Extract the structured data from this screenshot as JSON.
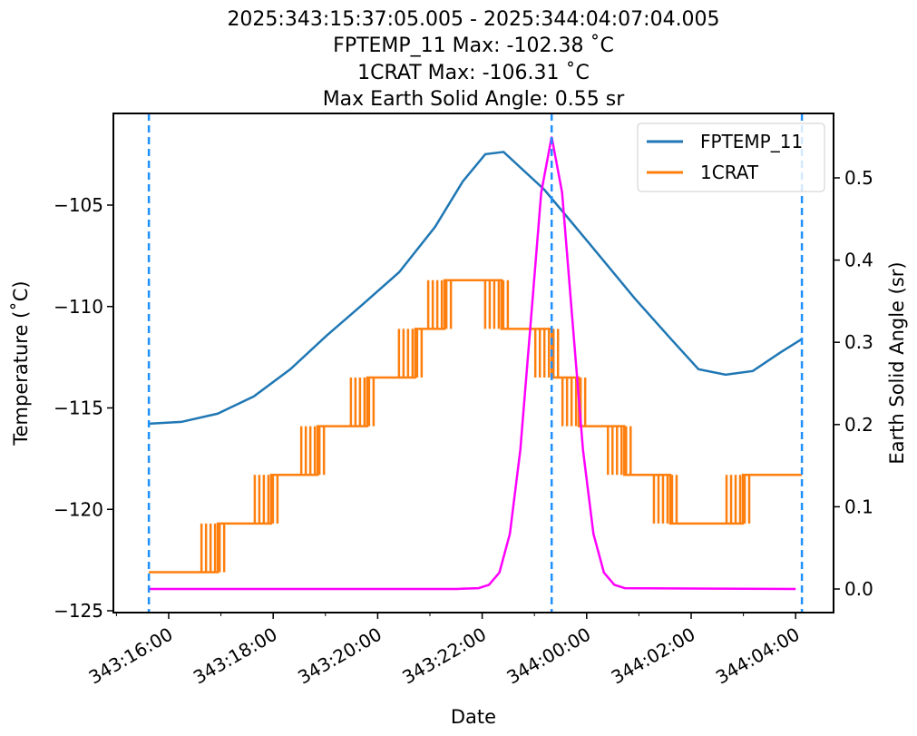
{
  "chart_data": {
    "type": "line",
    "title_lines": [
      "2025:343:15:37:05.005 - 2025:344:04:07:04.005",
      "FPTEMP_11 Max: -102.38 ˚C",
      "1CRAT Max: -106.31 ˚C",
      "Max Earth Solid Angle: 0.55 sr"
    ],
    "xlabel": "Date",
    "ylabel_left": "Temperature (˚C)",
    "ylabel_right": "Earth Solid Angle (sr)",
    "x_units": "hours since 343:16:00",
    "xlim": [
      -0.53,
      13.27
    ],
    "ylim_left": [
      -125.2,
      -100.6
    ],
    "ylim_right": [
      -0.03,
      0.58
    ],
    "x_ticks": [
      {
        "value": 0,
        "label": "343:16:00"
      },
      {
        "value": 2,
        "label": "343:18:00"
      },
      {
        "value": 4,
        "label": "343:20:00"
      },
      {
        "value": 6,
        "label": "343:22:00"
      },
      {
        "value": 8,
        "label": "344:00:00"
      },
      {
        "value": 10,
        "label": "344:02:00"
      },
      {
        "value": 12,
        "label": "344:04:00"
      }
    ],
    "y_ticks_left": [
      {
        "value": -105,
        "label": "−105"
      },
      {
        "value": -110,
        "label": "−110"
      },
      {
        "value": -115,
        "label": "−115"
      },
      {
        "value": -120,
        "label": "−120"
      },
      {
        "value": -125,
        "label": "−125"
      }
    ],
    "y_ticks_right": [
      {
        "value": 0.0,
        "label": "0.0"
      },
      {
        "value": 0.1,
        "label": "0.1"
      },
      {
        "value": 0.2,
        "label": "0.2"
      },
      {
        "value": 0.3,
        "label": "0.3"
      },
      {
        "value": 0.4,
        "label": "0.4"
      },
      {
        "value": 0.5,
        "label": "0.5"
      }
    ],
    "vlines": [
      -0.38,
      7.33,
      12.12
    ],
    "vline_color": "#1e90ff",
    "legend": {
      "position": "top-right",
      "entries": [
        "FPTEMP_11",
        "1CRAT"
      ]
    },
    "series": [
      {
        "name": "FPTEMP_11",
        "axis": "left",
        "color": "#1f77b4",
        "x": [
          -0.38,
          0.24,
          0.94,
          1.63,
          2.33,
          3.02,
          3.72,
          4.41,
          5.1,
          5.63,
          6.06,
          6.41,
          7.19,
          8.06,
          8.92,
          9.62,
          10.14,
          10.66,
          11.18,
          11.7,
          12.12
        ],
        "y": [
          -115.78,
          -115.69,
          -115.28,
          -114.43,
          -113.09,
          -111.44,
          -109.88,
          -108.31,
          -106.07,
          -103.83,
          -102.49,
          -102.38,
          -104.24,
          -106.92,
          -109.6,
          -111.62,
          -113.09,
          -113.36,
          -113.18,
          -112.28,
          -111.6
        ]
      },
      {
        "name": "1CRAT",
        "axis": "left",
        "color": "#ff7f0e",
        "type": "step",
        "x": [
          -0.38,
          0.94,
          1.96,
          2.85,
          3.8,
          4.72,
          5.28,
          6.37,
          7.33,
          7.85,
          8.72,
          9.6,
          10.99,
          12.12
        ],
        "y": [
          -123.1,
          -120.7,
          -118.3,
          -115.9,
          -113.5,
          -111.1,
          -108.7,
          -111.1,
          -113.5,
          -115.9,
          -118.3,
          -120.7,
          -118.3,
          -118.3
        ]
      },
      {
        "name": "Earth Solid Angle",
        "axis": "right",
        "color": "#ff00ff",
        "x": [
          -0.38,
          5.5,
          5.93,
          6.13,
          6.33,
          6.53,
          6.73,
          6.93,
          7.13,
          7.33,
          7.53,
          7.73,
          7.93,
          8.13,
          8.33,
          8.53,
          8.73,
          12.0
        ],
        "y": [
          0,
          0,
          0.001,
          0.005,
          0.02,
          0.067,
          0.169,
          0.325,
          0.482,
          0.55,
          0.482,
          0.325,
          0.169,
          0.067,
          0.02,
          0.005,
          0.001,
          0
        ]
      }
    ]
  }
}
